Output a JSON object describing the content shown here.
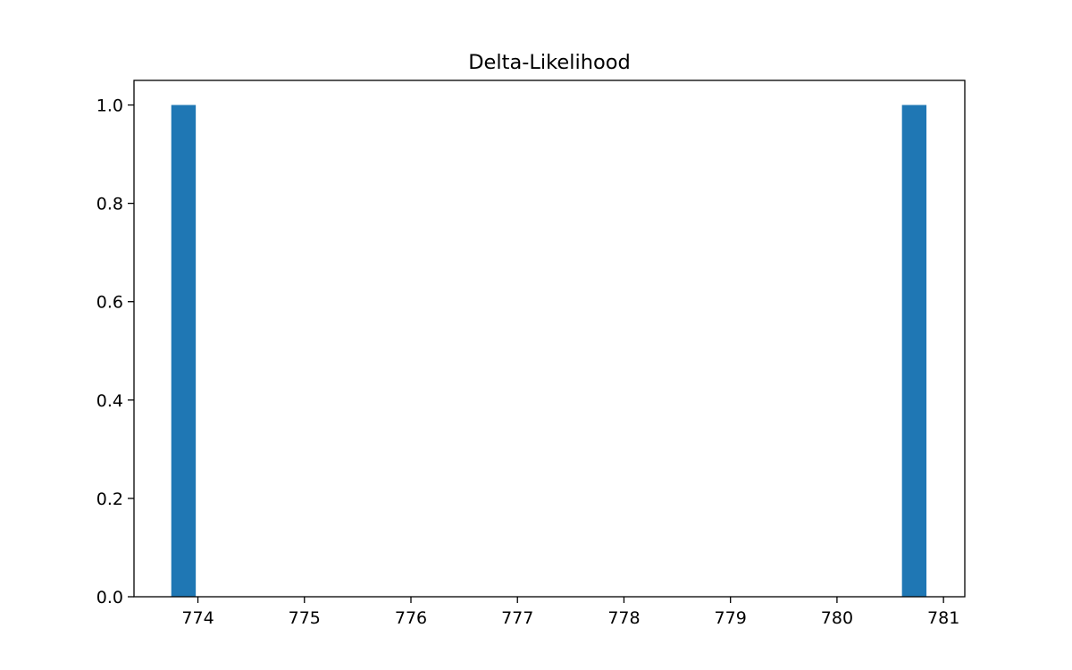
{
  "chart_data": {
    "type": "bar",
    "title": "Delta-Likelihood",
    "xlabel": "",
    "ylabel": "",
    "bins": [
      {
        "x_start": 773.75,
        "x_end": 773.98,
        "value": 1.0
      },
      {
        "x_start": 780.61,
        "x_end": 780.84,
        "value": 1.0
      }
    ],
    "xlim": [
      773.4,
      781.2
    ],
    "ylim": [
      0,
      1.05
    ],
    "x_ticks": [
      774,
      775,
      776,
      777,
      778,
      779,
      780,
      781
    ],
    "y_ticks": [
      "0.0",
      "0.2",
      "0.4",
      "0.6",
      "0.8",
      "1.0"
    ],
    "grid": false,
    "legend": "none",
    "bar_color": "#1f77b4"
  }
}
